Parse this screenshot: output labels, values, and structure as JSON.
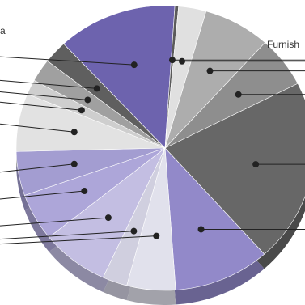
{
  "chart_data": {
    "type": "pie",
    "style": "3d-tilted-pie-with-leader-lines",
    "legend": "none",
    "visible_labels": [
      {
        "text": "a",
        "slice_index": 15
      },
      {
        "text": "Furnish",
        "slice_index": 1
      }
    ],
    "slices": [
      {
        "value": 7.3,
        "color": "#adadad"
      },
      {
        "value": 5.8,
        "color": "#8e8e8e"
      },
      {
        "value": 20.9,
        "color": "#676767"
      },
      {
        "value": 10.5,
        "color": "#9289c9"
      },
      {
        "value": 5.3,
        "color": "#e1e1ec"
      },
      {
        "value": 2.7,
        "color": "#d0cfdf"
      },
      {
        "value": 7.4,
        "color": "#c3bee2"
      },
      {
        "value": 5.4,
        "color": "#ada6d9"
      },
      {
        "value": 5.0,
        "color": "#a39dd1"
      },
      {
        "value": 6.6,
        "color": "#e2e2e2"
      },
      {
        "value": 1.7,
        "color": "#cecece"
      },
      {
        "value": 2.6,
        "color": "#a0a0a0"
      },
      {
        "value": 2.6,
        "color": "#5f5f5f"
      },
      {
        "value": 13.0,
        "color": "#6d63ae"
      },
      {
        "value": 0.4,
        "color": "#5a5a5a"
      },
      {
        "value": 3.0,
        "color": "#e0e0e0"
      }
    ]
  }
}
